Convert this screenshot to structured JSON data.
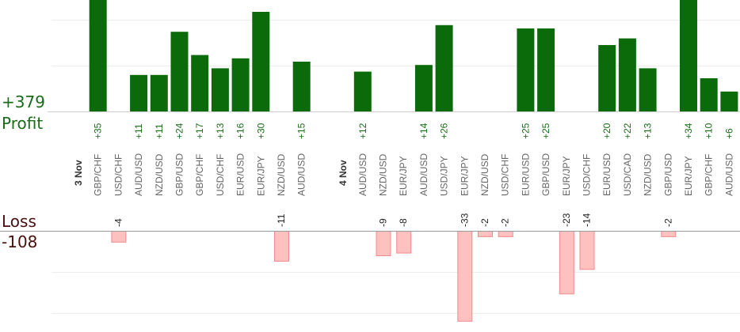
{
  "summary": {
    "profit_total": "+379",
    "profit_label": "Profit",
    "loss_label": "Loss",
    "loss_total": "-108"
  },
  "colors": {
    "profit_bar": "#0b6b0b",
    "profit_text": "#1a6b1a",
    "loss_bar_fill": "#ffc0c0",
    "loss_bar_stroke": "#f08a8a",
    "loss_text": "#4a0f0f",
    "pair_text": "#666666",
    "date_text": "#333333"
  },
  "chart_data": {
    "type": "bar",
    "grid": true,
    "ylim_profit": [
      0,
      35
    ],
    "ylim_loss": [
      -33,
      0
    ],
    "slots": [
      {
        "date": "3 Nov"
      },
      {
        "pair": "GBP/CHF",
        "profit": 35
      },
      {
        "pair": "USD/CHF",
        "loss": -4
      },
      {
        "pair": "AUD/USD",
        "profit": 11
      },
      {
        "pair": "NZD/USD",
        "profit": 11
      },
      {
        "pair": "GBP/USD",
        "profit": 24
      },
      {
        "pair": "GBP/CHF",
        "profit": 17
      },
      {
        "pair": "USD/CHF",
        "profit": 13
      },
      {
        "pair": "EUR/USD",
        "profit": 16
      },
      {
        "pair": "EUR/JPY",
        "profit": 30
      },
      {
        "pair": "NZD/USD",
        "loss": -11
      },
      {
        "pair": "AUD/USD",
        "profit": 15
      },
      {},
      {
        "date": "4 Nov"
      },
      {
        "pair": "AUD/USD",
        "profit": 12
      },
      {
        "pair": "NZD/USD",
        "loss": -9
      },
      {
        "pair": "EUR/JPY",
        "loss": -8
      },
      {
        "pair": "AUD/USD",
        "profit": 14
      },
      {
        "pair": "USD/JPY",
        "profit": 26
      },
      {
        "pair": "EUR/JPY",
        "loss": -33
      },
      {
        "pair": "NZD/USD",
        "loss": -2
      },
      {
        "pair": "USD/CHF",
        "loss": -2
      },
      {
        "pair": "EUR/USD",
        "profit": 25
      },
      {
        "pair": "GBP/USD",
        "profit": 25
      },
      {
        "pair": "EUR/JPY",
        "loss": -23
      },
      {
        "pair": "USD/CHF",
        "loss": -14
      },
      {
        "pair": "EUR/USD",
        "profit": 20
      },
      {
        "pair": "USD/CAD",
        "profit": 22
      },
      {
        "pair": "NZD/USD",
        "profit": 13
      },
      {
        "pair": "GBP/USD",
        "loss": -2
      },
      {
        "pair": "EUR/JPY",
        "profit": 34
      },
      {
        "pair": "GBP/CHF",
        "profit": 10
      },
      {
        "pair": "AUD/USD",
        "profit": 6
      }
    ]
  }
}
